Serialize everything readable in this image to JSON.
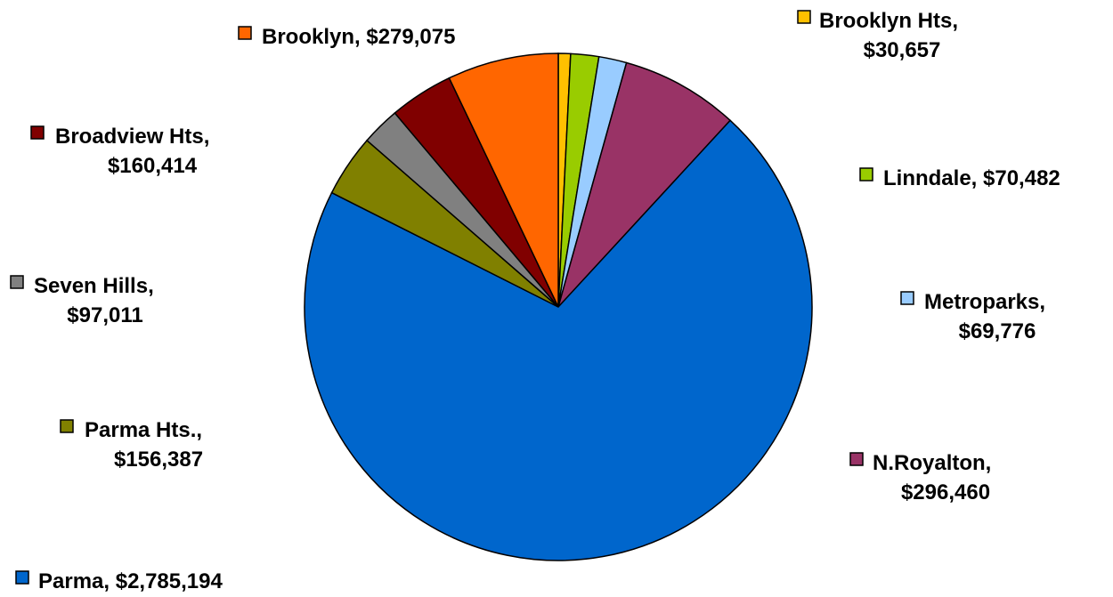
{
  "chart_data": {
    "type": "pie",
    "title": "",
    "start_angle_deg": 0,
    "direction": "clockwise",
    "slices": [
      {
        "label": "Brooklyn Hts",
        "value_text": "$30,657",
        "value": 30657,
        "color": "#FFC000"
      },
      {
        "label": "Linndale",
        "value_text": "$70,482",
        "value": 70482,
        "color": "#99CC00"
      },
      {
        "label": "Metroparks",
        "value_text": "$69,776",
        "value": 69776,
        "color": "#99CCFF"
      },
      {
        "label": "N.Royalton",
        "value_text": "$296,460",
        "value": 296460,
        "color": "#993366"
      },
      {
        "label": "Parma",
        "value_text": "$2,785,194",
        "value": 2785194,
        "color": "#0066CC"
      },
      {
        "label": "Parma Hts.",
        "value_text": "$156,387",
        "value": 156387,
        "color": "#808000"
      },
      {
        "label": "Seven Hills",
        "value_text": "$97,011",
        "value": 97011,
        "color": "#808080"
      },
      {
        "label": "Broadview Hts",
        "value_text": "$160,414",
        "value": 160414,
        "color": "#800000"
      },
      {
        "label": "Brooklyn",
        "value_text": "$279,075",
        "value": 279075,
        "color": "#FF6600"
      }
    ]
  }
}
